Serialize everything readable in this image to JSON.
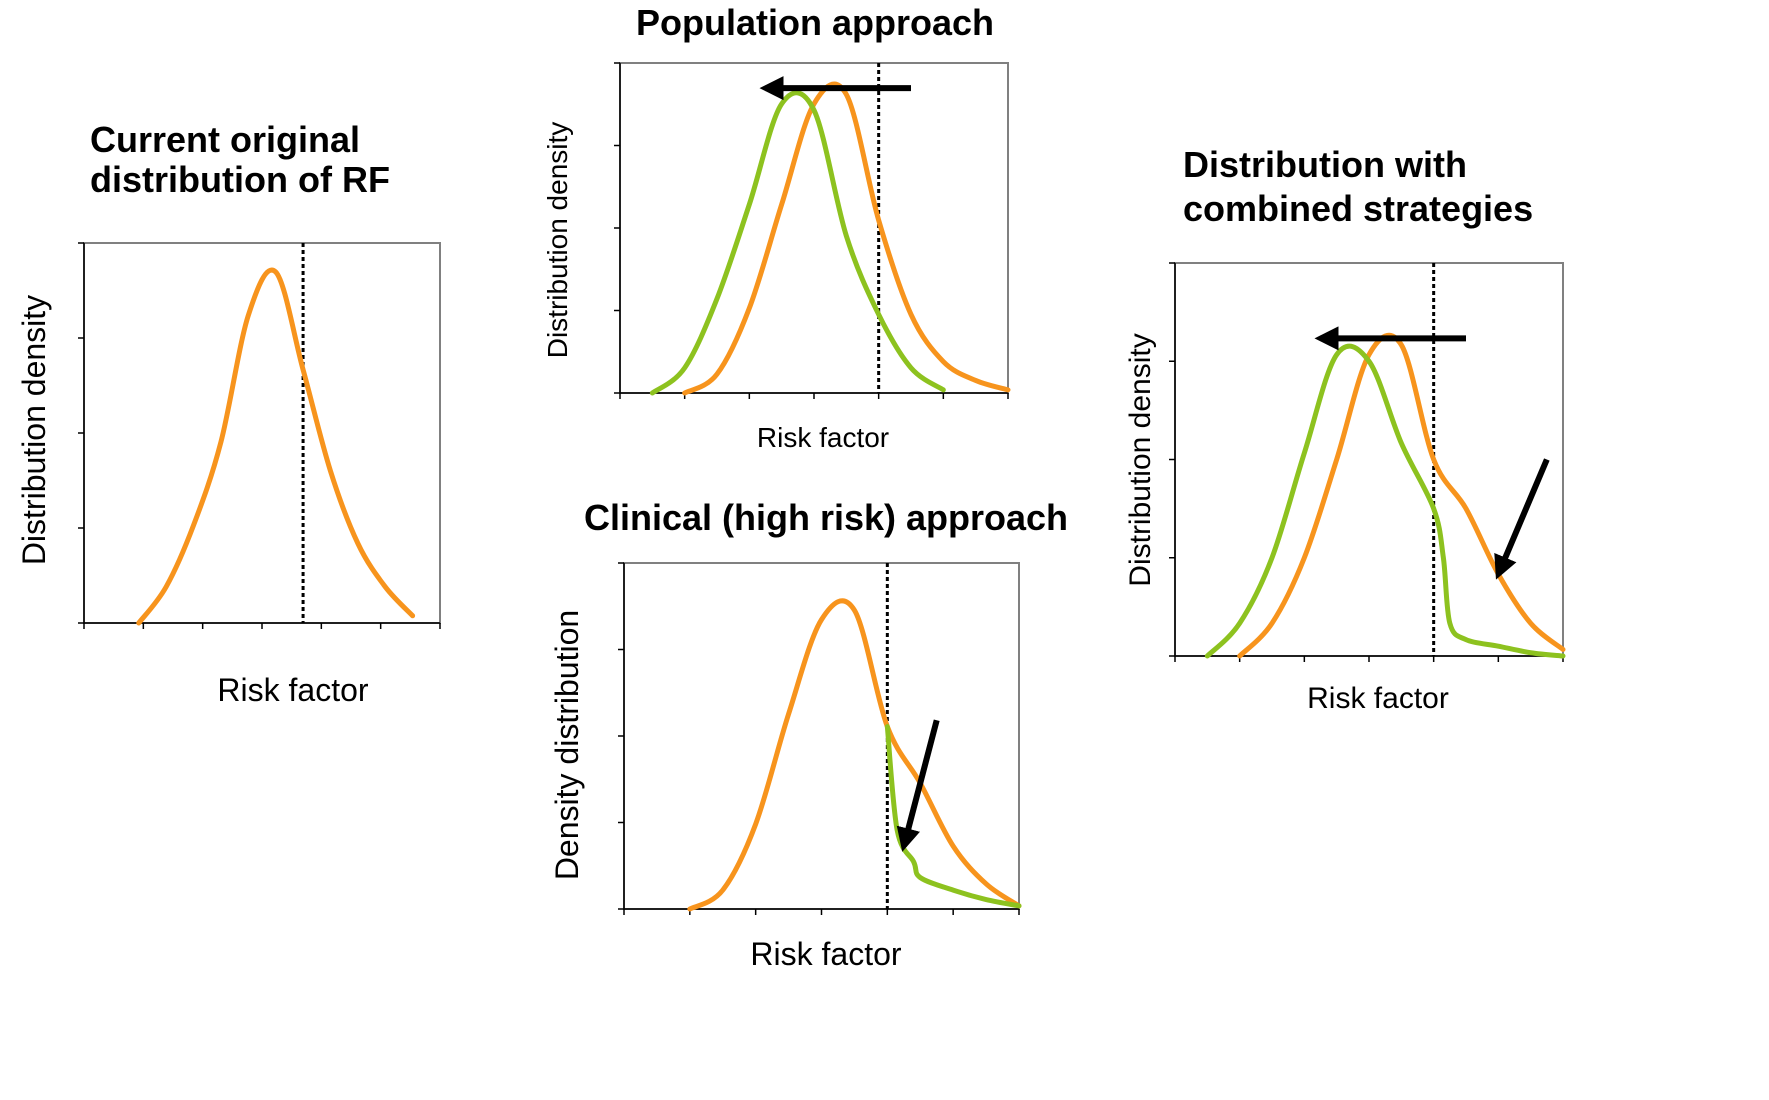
{
  "colors": {
    "original": "#F7941D",
    "shifted": "#8DC21F",
    "arrow": "#000000"
  },
  "chart_data": [
    {
      "type": "line",
      "title": "Current original distribution of RF",
      "title_lines": [
        "Current original",
        "distribution of RF"
      ],
      "xlabel": "Risk factor",
      "ylabel": "Distribution density",
      "threshold": 8,
      "series": [
        {
          "key": "original",
          "x": [
            2,
            3,
            4,
            5,
            6,
            7,
            8,
            9,
            10,
            11,
            12
          ],
          "y": [
            0,
            0.1,
            0.27,
            0.5,
            0.85,
            0.97,
            0.7,
            0.42,
            0.22,
            0.1,
            0.02
          ]
        }
      ]
    },
    {
      "type": "line",
      "title": "Population approach",
      "title_lines": [
        "Population approach"
      ],
      "xlabel": "Risk factor",
      "ylabel": "Distribution density",
      "threshold": 8,
      "arrow": {
        "from_x": 9,
        "to_x": 4.5,
        "y": 0.97
      },
      "series": [
        {
          "key": "original",
          "x": [
            2,
            3,
            4,
            5,
            6,
            7,
            8,
            9,
            10,
            11,
            12
          ],
          "y": [
            0,
            0.06,
            0.27,
            0.6,
            0.92,
            0.95,
            0.55,
            0.25,
            0.1,
            0.04,
            0.01
          ]
        },
        {
          "key": "shifted",
          "x": [
            1,
            2,
            3,
            4,
            5,
            6,
            7,
            8,
            9,
            10
          ],
          "y": [
            0,
            0.08,
            0.3,
            0.6,
            0.92,
            0.9,
            0.5,
            0.25,
            0.08,
            0.01
          ]
        }
      ]
    },
    {
      "type": "line",
      "title": "Clinical (high risk) approach",
      "title_lines": [
        "Clinical (high risk) approach"
      ],
      "xlabel": "Risk factor",
      "ylabel": "Density distribution",
      "threshold": 8,
      "arrow": {
        "from_x": 9.5,
        "to_x": 8.5,
        "y_from": 0.6,
        "y_to": 0.2
      },
      "series": [
        {
          "key": "original",
          "x": [
            2,
            3,
            4,
            5,
            6,
            7,
            8,
            9,
            10,
            11,
            12
          ],
          "y": [
            0,
            0.06,
            0.27,
            0.62,
            0.92,
            0.95,
            0.58,
            0.4,
            0.2,
            0.08,
            0.01
          ]
        },
        {
          "key": "shifted",
          "x": [
            8,
            8.3,
            8.8,
            9,
            10,
            11,
            12
          ],
          "y": [
            0.58,
            0.25,
            0.15,
            0.1,
            0.06,
            0.03,
            0.01
          ]
        }
      ]
    },
    {
      "type": "line",
      "title": "Distribution with combined strategies",
      "title_lines": [
        "Distribution with",
        "combined strategies"
      ],
      "xlabel": "Risk factor",
      "ylabel": "Distribution density",
      "threshold": 8,
      "arrows": [
        {
          "from_x": 9,
          "to_x": 4.5,
          "y": 0.97
        },
        {
          "from_x": 11.5,
          "to_x": 10,
          "y_from": 0.6,
          "y_to": 0.25
        }
      ],
      "series": [
        {
          "key": "original",
          "x": [
            2,
            3,
            4,
            5,
            6,
            7,
            8,
            9,
            10,
            11,
            12
          ],
          "y": [
            0,
            0.1,
            0.3,
            0.6,
            0.92,
            0.95,
            0.6,
            0.45,
            0.25,
            0.1,
            0.02
          ]
        },
        {
          "key": "shifted",
          "x": [
            1,
            2,
            3,
            4,
            5,
            6,
            7,
            8,
            8.3,
            8.5,
            9,
            10,
            11,
            12
          ],
          "y": [
            0,
            0.1,
            0.3,
            0.62,
            0.92,
            0.9,
            0.65,
            0.45,
            0.3,
            0.1,
            0.05,
            0.03,
            0.01,
            0
          ]
        }
      ]
    }
  ]
}
